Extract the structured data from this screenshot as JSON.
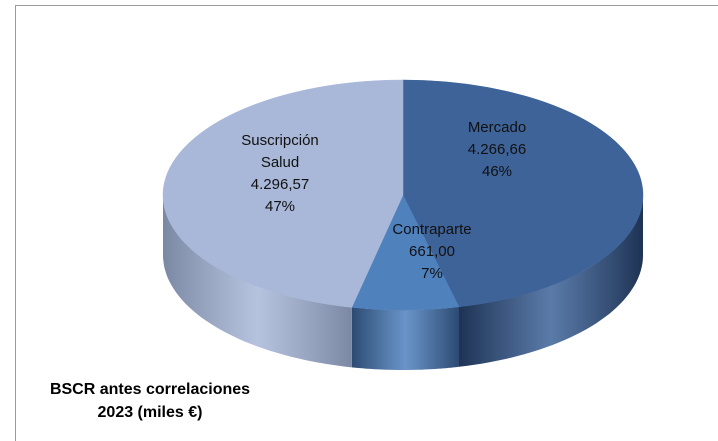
{
  "chart_data": {
    "type": "pie3d",
    "title": "BSCR antes correlaciones 2023 (miles €)",
    "categories": [
      "Mercado",
      "Contraparte",
      "Suscripción Salud"
    ],
    "values": [
      4266.66,
      661.0,
      4296.57
    ],
    "value_labels": [
      "4.266,66",
      "661,00",
      "4.296,57"
    ],
    "percentages": [
      46,
      7,
      47
    ],
    "percent_labels": [
      "46%",
      "7%",
      "47%"
    ],
    "colors": [
      "#3d6399",
      "#4f81bd",
      "#a9b8d9"
    ],
    "side_colors": [
      "#1e3354",
      "#2c4a72",
      "#7b88a3"
    ]
  }
}
